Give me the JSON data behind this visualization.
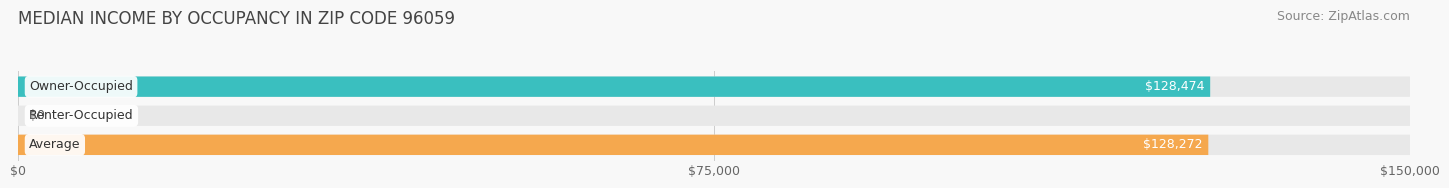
{
  "title": "MEDIAN INCOME BY OCCUPANCY IN ZIP CODE 96059",
  "source": "Source: ZipAtlas.com",
  "categories": [
    "Owner-Occupied",
    "Renter-Occupied",
    "Average"
  ],
  "values": [
    128474,
    0,
    128272
  ],
  "labels": [
    "$128,474",
    "$0",
    "$128,272"
  ],
  "bar_colors": [
    "#3abfbf",
    "#c4a8d0",
    "#f5a84e"
  ],
  "bar_bg_color": "#e8e8e8",
  "bar_shadow_color": "#d0d0d0",
  "background_color": "#f8f8f8",
  "xlim": [
    0,
    150000
  ],
  "xtick_labels": [
    "$0",
    "$75,000",
    "$150,000"
  ],
  "xtick_values": [
    0,
    75000,
    150000
  ],
  "bar_height": 0.7,
  "label_color_inside": "#ffffff",
  "label_color_outside": "#555555",
  "title_fontsize": 12,
  "source_fontsize": 9,
  "tick_fontsize": 9,
  "bar_label_fontsize": 9,
  "category_fontsize": 9,
  "grid_color": "#cccccc"
}
